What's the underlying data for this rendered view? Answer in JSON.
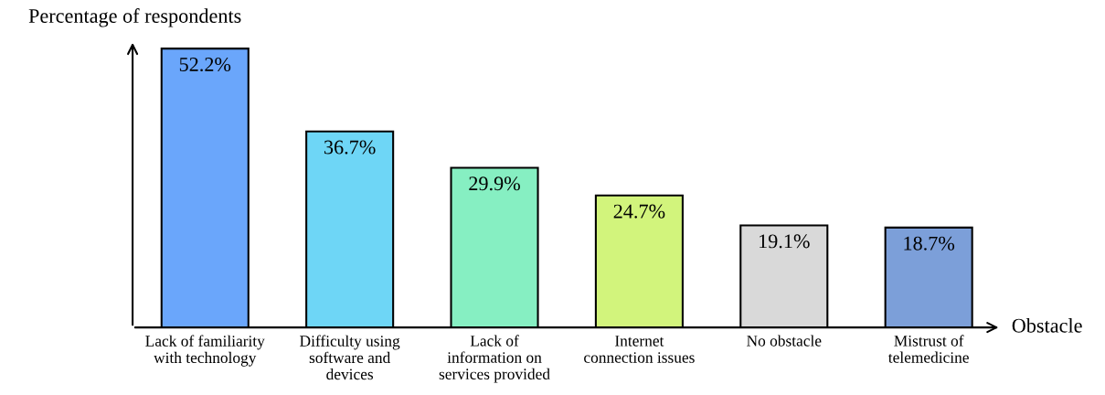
{
  "chart_data": {
    "type": "bar",
    "xlabel": "Obstacle",
    "ylabel": "Percentage of respondents",
    "categories": [
      "Lack of familiarity\nwith technology",
      "Difficulty using\nsoftware and\ndevices",
      "Lack of\ninformation on\nservices provided",
      "Internet\nconnection issues",
      "No obstacle",
      "Mistrust of\ntelemedicine"
    ],
    "values": [
      52.2,
      36.7,
      29.9,
      24.7,
      19.1,
      18.7
    ],
    "colors": [
      "#6aa6fb",
      "#6ed6f6",
      "#86efc2",
      "#d2f47c",
      "#d9d9d9",
      "#7c9fd9"
    ],
    "value_labels": [
      "52.2%",
      "36.7%",
      "29.9%",
      "24.7%",
      "19.1%",
      "18.7%"
    ],
    "grid": false,
    "legend": false
  }
}
